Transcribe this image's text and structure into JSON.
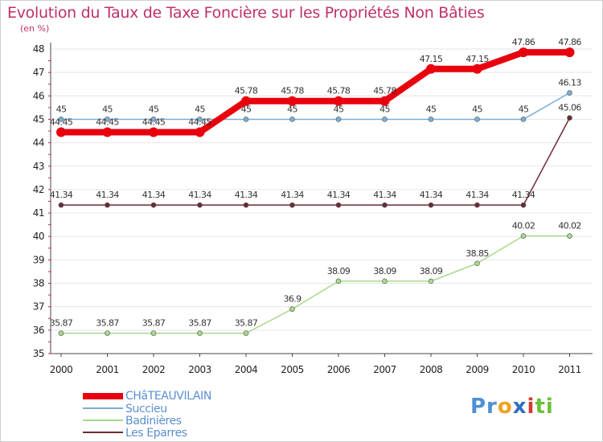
{
  "chart_data": {
    "type": "line",
    "title": "Evolution du Taux de Taxe Foncière sur les Propriétés Non Bâties",
    "ylabel": "(en %)",
    "xlabel": "",
    "ylim": [
      35,
      48
    ],
    "yticks": [
      35,
      36,
      37,
      38,
      39,
      40,
      41,
      42,
      43,
      44,
      45,
      46,
      47,
      48
    ],
    "categories": [
      "2000",
      "2001",
      "2002",
      "2003",
      "2004",
      "2005",
      "2006",
      "2007",
      "2008",
      "2009",
      "2010",
      "2011"
    ],
    "grid": "horizontal",
    "series": [
      {
        "name": "Les Eparres",
        "color": "#6b2a35",
        "values": [
          41.34,
          41.34,
          41.34,
          41.34,
          41.34,
          41.34,
          41.34,
          41.34,
          41.34,
          41.34,
          41.34,
          45.06
        ],
        "labels": [
          "41.34",
          "41.34",
          "41.34",
          "41.34",
          "41.34",
          "41.34",
          "41.34",
          "41.34",
          "41.34",
          "41.34",
          "41.34",
          "45.06"
        ]
      },
      {
        "name": "Badinières",
        "color": "#a6d98a",
        "values": [
          35.87,
          35.87,
          35.87,
          35.87,
          35.87,
          36.9,
          38.09,
          38.09,
          38.09,
          38.85,
          40.02,
          40.02
        ],
        "labels": [
          "35.87",
          "35.87",
          "35.87",
          "35.87",
          "35.87",
          "36.9",
          "38.09",
          "38.09",
          "38.09",
          "38.85",
          "40.02",
          "40.02"
        ]
      },
      {
        "name": "Succieu",
        "color": "#7aaed6",
        "values": [
          45,
          45,
          45,
          45,
          45,
          45,
          45,
          45,
          45,
          45,
          45,
          46.13
        ],
        "labels": [
          "45",
          "45",
          "45",
          "45",
          "45",
          "45",
          "45",
          "45",
          "45",
          "45",
          "45",
          "46.13"
        ]
      },
      {
        "name": "CHâTEAUVILAIN",
        "color": "#e8000e",
        "values": [
          44.45,
          44.45,
          44.45,
          44.45,
          45.78,
          45.78,
          45.78,
          45.78,
          47.15,
          47.15,
          47.86,
          47.86
        ],
        "labels": [
          "44.45",
          "44.45",
          "44.45",
          "44.45",
          "45.78",
          "45.78",
          "45.78",
          "45.78",
          "47.15",
          "47.15",
          "47.86",
          "47.86"
        ]
      }
    ],
    "legend": {
      "position": "bottom-left",
      "entries": [
        "CHâTEAUVILAIN",
        "Succieu",
        "Badinières",
        "Les Eparres"
      ]
    }
  },
  "logo": {
    "text_p": "Pr",
    "text_o": "o",
    "text_x": "x",
    "text_i": "i",
    "text_ti": "ti"
  }
}
